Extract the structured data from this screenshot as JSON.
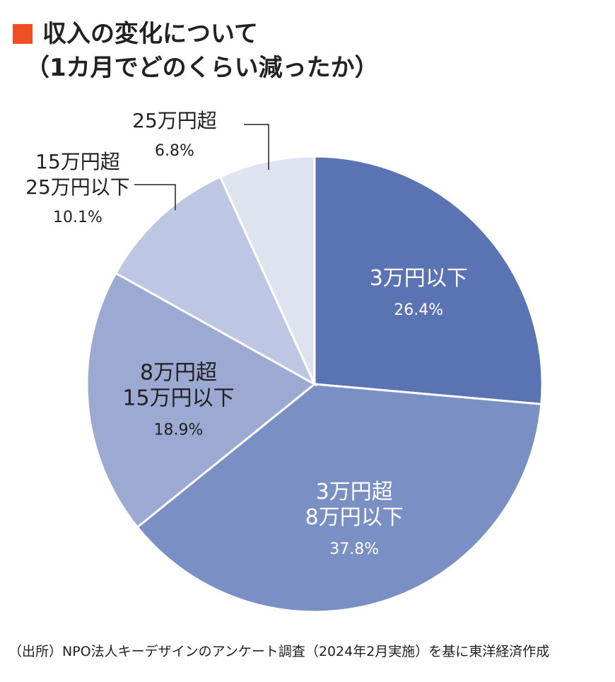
{
  "title": {
    "line1": "収入の変化について",
    "line2": "（1カ月でどのくらい減ったか）",
    "marker_color": "#f04e23"
  },
  "chart_data": {
    "type": "pie",
    "title": "収入の変化について（1カ月でどのくらい減ったか）",
    "slices": [
      {
        "label_lines": [
          "3万円以下"
        ],
        "value": 26.4,
        "value_text": "26.4%",
        "color": "#5a73b3",
        "text_color": "#ffffff"
      },
      {
        "label_lines": [
          "3万円超",
          "8万円以下"
        ],
        "value": 37.8,
        "value_text": "37.8%",
        "color": "#7a90c4",
        "text_color": "#ffffff"
      },
      {
        "label_lines": [
          "8万円超",
          "15万円以下"
        ],
        "value": 18.9,
        "value_text": "18.9%",
        "color": "#9ba9d3",
        "text_color": "#222222"
      },
      {
        "label_lines": [
          "15万円超",
          "25万円以下"
        ],
        "value": 10.1,
        "value_text": "10.1%",
        "color": "#bdc6e2",
        "text_color": "#222222"
      },
      {
        "label_lines": [
          "25万円超"
        ],
        "value": 6.8,
        "value_text": "6.8%",
        "color": "#dfe3ef",
        "text_color": "#222222"
      }
    ],
    "start": "12 o'clock",
    "direction": "clockwise",
    "legend": "none"
  },
  "source": "（出所）NPO法人キーデザインのアンケート調査（2024年2月実施）を基に東洋経済作成"
}
